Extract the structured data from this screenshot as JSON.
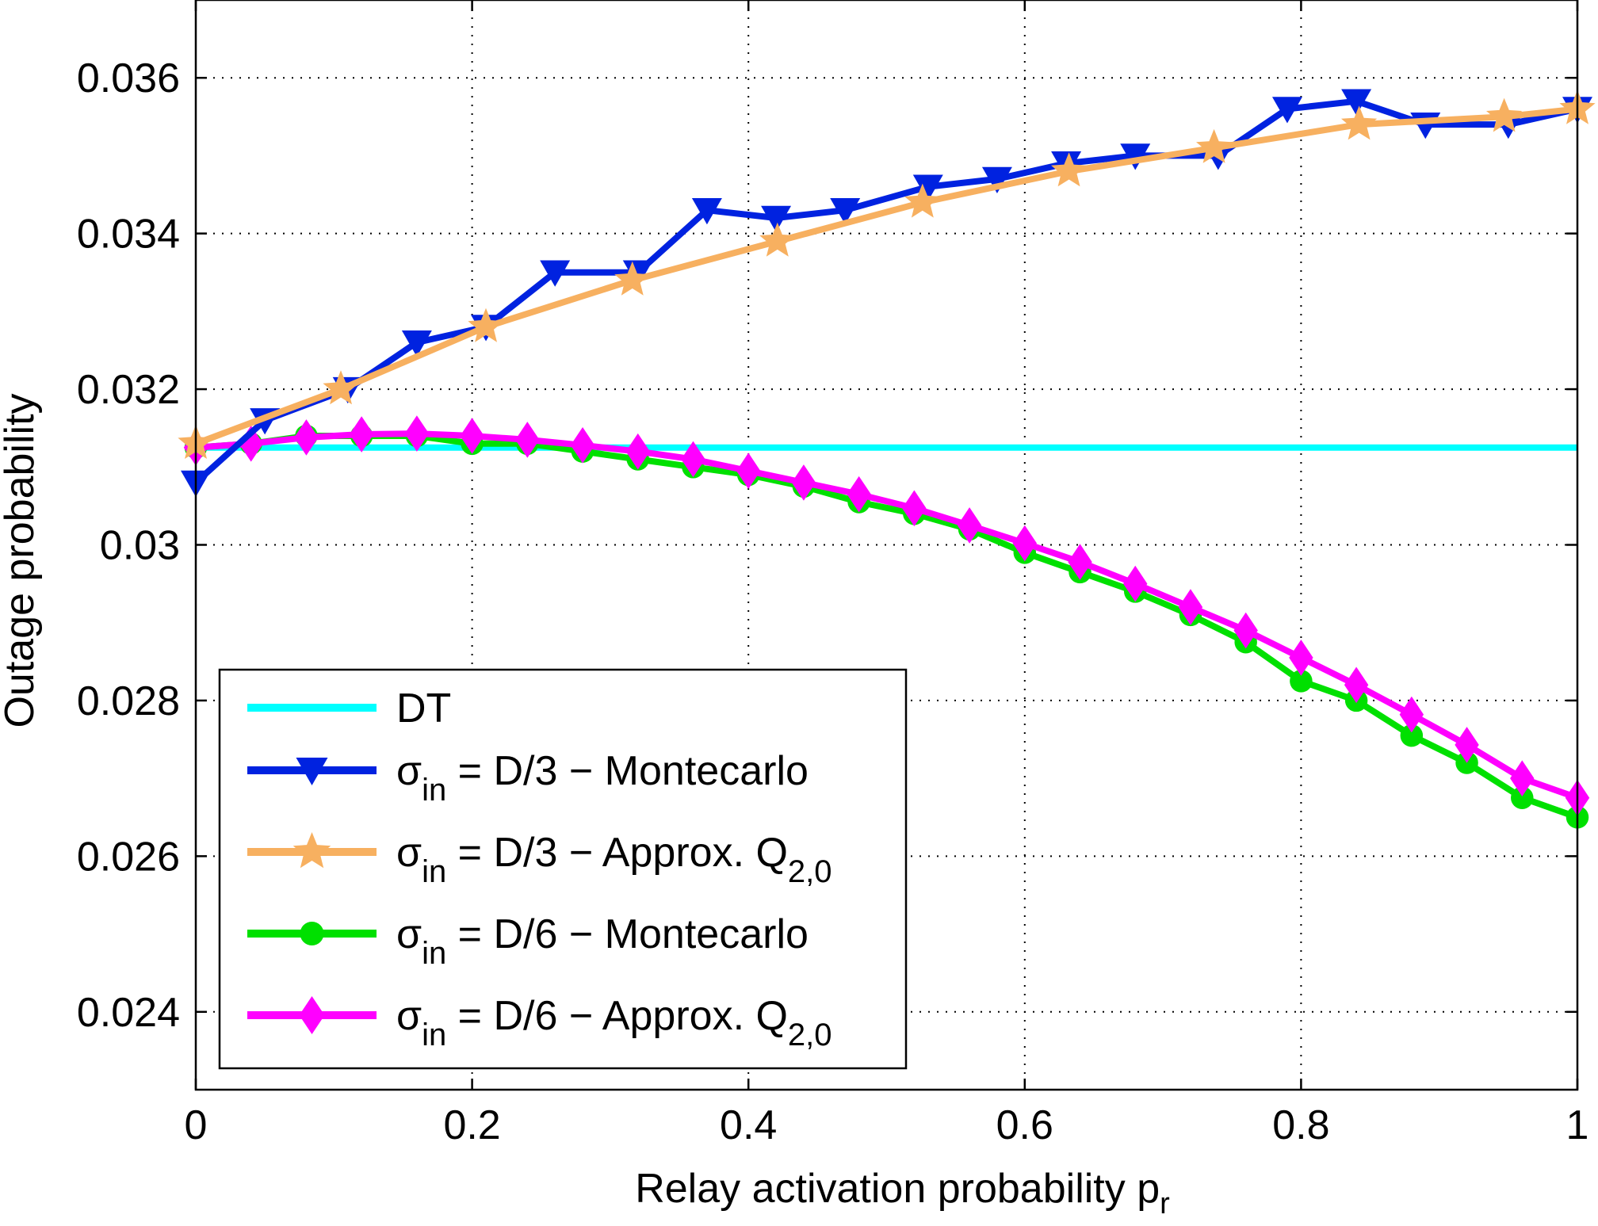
{
  "chart_data": {
    "type": "line",
    "title": "",
    "xlabel": "Relay activation probability p",
    "xlabel_sub": "r",
    "ylabel": "Outage probability",
    "xlim": [
      0,
      1
    ],
    "ylim": [
      0.023,
      0.037
    ],
    "grid": true,
    "xticks": [
      0,
      0.2,
      0.4,
      0.6,
      0.8,
      1
    ],
    "xtick_labels": [
      "0",
      "0.2",
      "0.4",
      "0.6",
      "0.8",
      "1"
    ],
    "yticks": [
      0.024,
      0.026,
      0.028,
      0.03,
      0.032,
      0.034,
      0.036
    ],
    "ytick_labels": [
      "0.024",
      "0.026",
      "0.028",
      "0.03",
      "0.032",
      "0.034",
      "0.036"
    ],
    "legend_position": "bottom-left",
    "series": [
      {
        "key": "dt",
        "name": "DT",
        "color": "#00ffff",
        "marker": "none",
        "x": [
          0,
          1
        ],
        "y": [
          0.03125,
          0.03125
        ]
      },
      {
        "key": "d3-mc",
        "name": "σin = D/3 − Montecarlo",
        "sym": "σ",
        "sub": "in",
        "text": " = D/3 − Montecarlo",
        "sub2": "",
        "color": "#0022e0",
        "marker": "triangle-down",
        "x": [
          0,
          0.05,
          0.11,
          0.16,
          0.21,
          0.26,
          0.32,
          0.37,
          0.42,
          0.47,
          0.53,
          0.58,
          0.63,
          0.68,
          0.74,
          0.79,
          0.84,
          0.89,
          0.95,
          1.0
        ],
        "y": [
          0.0308,
          0.0316,
          0.032,
          0.0326,
          0.0328,
          0.0335,
          0.0335,
          0.0343,
          0.0342,
          0.0343,
          0.0346,
          0.0347,
          0.0349,
          0.035,
          0.035,
          0.0356,
          0.0357,
          0.0354,
          0.0354,
          0.0356
        ]
      },
      {
        "key": "d3-approx",
        "name": "σin = D/3 − Approx. Q2,0",
        "sym": "σ",
        "sub": "in",
        "text": " = D/3 − Approx. Q",
        "sub2": "2,0",
        "color": "#f7b060",
        "marker": "star",
        "x": [
          0,
          0.105,
          0.21,
          0.316,
          0.421,
          0.526,
          0.632,
          0.737,
          0.842,
          0.947,
          1.0
        ],
        "y": [
          0.0313,
          0.032,
          0.0328,
          0.0334,
          0.0339,
          0.0344,
          0.0348,
          0.0351,
          0.0354,
          0.0355,
          0.0356
        ]
      },
      {
        "key": "d6-mc",
        "name": "σin = D/6 − Montecarlo",
        "sym": "σ",
        "sub": "in",
        "text": " = D/6 − Montecarlo",
        "sub2": "",
        "color": "#00e000",
        "marker": "circle",
        "x": [
          0,
          0.04,
          0.08,
          0.12,
          0.16,
          0.2,
          0.24,
          0.28,
          0.32,
          0.36,
          0.4,
          0.44,
          0.48,
          0.52,
          0.56,
          0.6,
          0.64,
          0.68,
          0.72,
          0.76,
          0.8,
          0.84,
          0.88,
          0.92,
          0.96,
          1.0
        ],
        "y": [
          0.03125,
          0.0313,
          0.0314,
          0.0314,
          0.0314,
          0.0313,
          0.0313,
          0.0312,
          0.0311,
          0.031,
          0.0309,
          0.03075,
          0.03055,
          0.0304,
          0.0302,
          0.0299,
          0.02965,
          0.0294,
          0.0291,
          0.02875,
          0.02825,
          0.028,
          0.02755,
          0.0272,
          0.02675,
          0.0265
        ]
      },
      {
        "key": "d6-approx",
        "name": "σin = D/6 − Approx. Q2,0",
        "sym": "σ",
        "sub": "in",
        "text": " = D/6 − Approx. Q",
        "sub2": "2,0",
        "color": "#ff00ff",
        "marker": "diamond",
        "x": [
          0,
          0.04,
          0.08,
          0.12,
          0.16,
          0.2,
          0.24,
          0.28,
          0.32,
          0.36,
          0.4,
          0.44,
          0.48,
          0.52,
          0.56,
          0.6,
          0.64,
          0.68,
          0.72,
          0.76,
          0.8,
          0.84,
          0.88,
          0.92,
          0.96,
          1.0
        ],
        "y": [
          0.03125,
          0.0313,
          0.03138,
          0.03142,
          0.03143,
          0.0314,
          0.03135,
          0.03128,
          0.0312,
          0.0311,
          0.03095,
          0.0308,
          0.03065,
          0.03047,
          0.03025,
          0.03002,
          0.02978,
          0.0295,
          0.0292,
          0.0289,
          0.02855,
          0.0282,
          0.02782,
          0.02743,
          0.027,
          0.02675
        ]
      }
    ]
  }
}
